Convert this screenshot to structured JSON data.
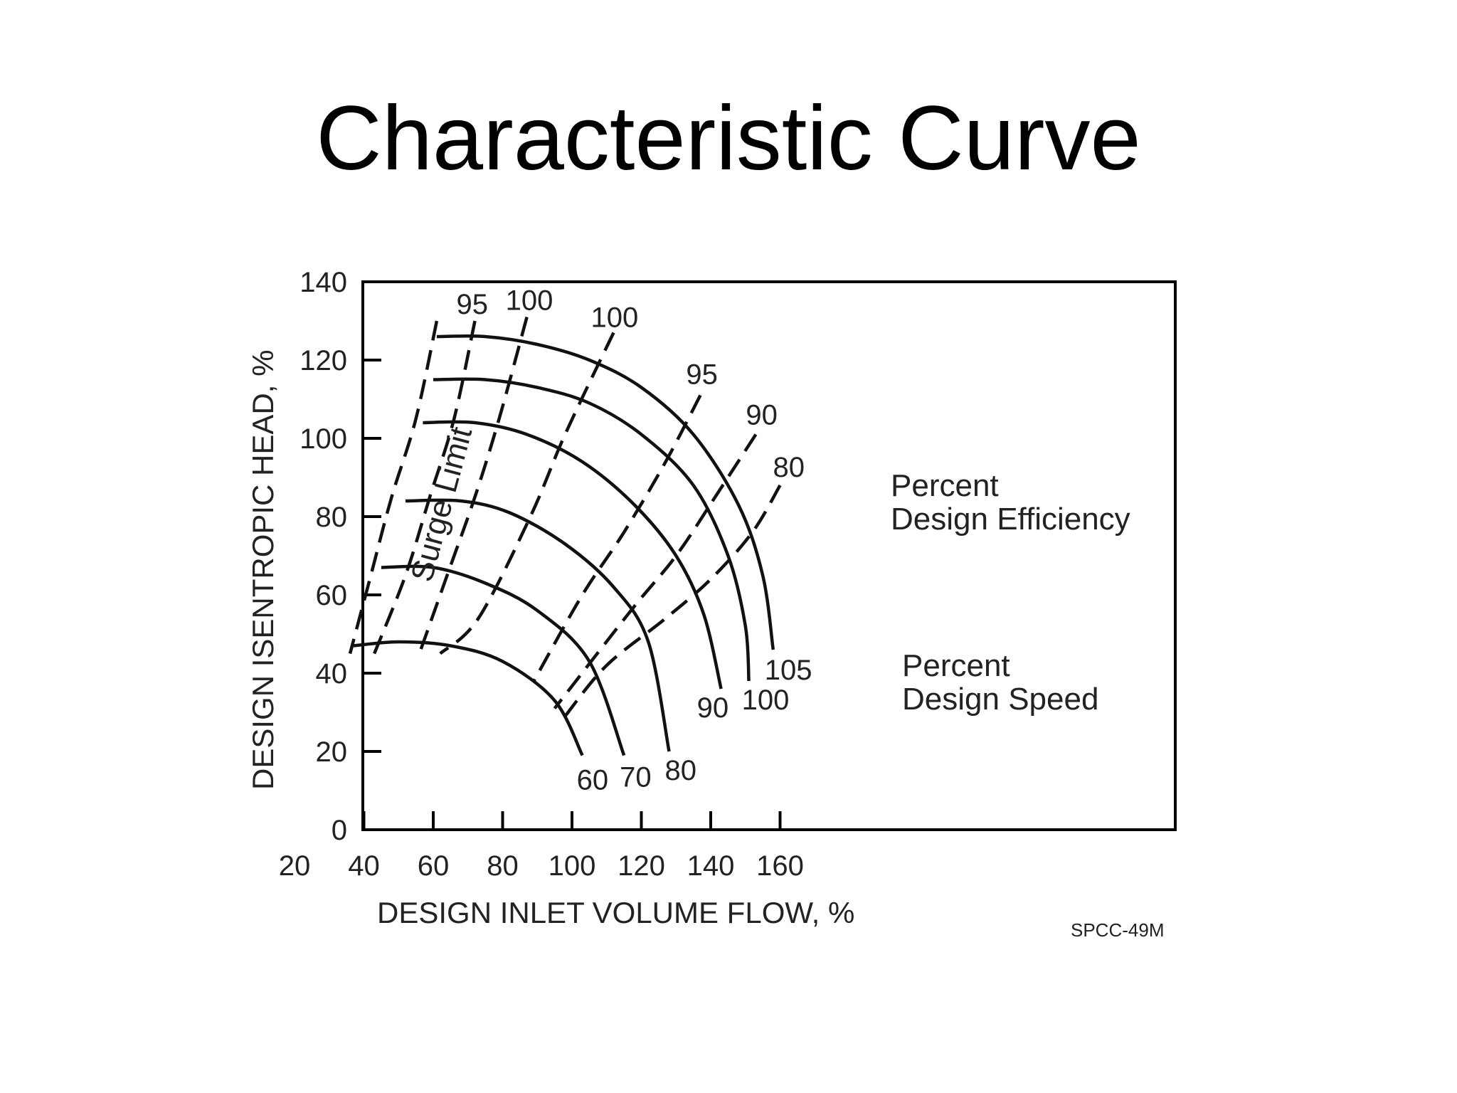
{
  "title": "Characteristic Curve",
  "chart_data": {
    "type": "line",
    "xlabel": "DESIGN INLET VOLUME FLOW, %",
    "ylabel": "DESIGN ISENTROPIC HEAD, %",
    "xlim": [
      20,
      160
    ],
    "ylim": [
      0,
      140
    ],
    "xticks": [
      20,
      40,
      60,
      80,
      100,
      120,
      140,
      160
    ],
    "yticks": [
      0,
      20,
      40,
      60,
      80,
      100,
      120,
      140
    ],
    "grid": false,
    "speed_lines": [
      {
        "label": "60",
        "points": [
          [
            37,
            47
          ],
          [
            50,
            48
          ],
          [
            65,
            47
          ],
          [
            80,
            43
          ],
          [
            95,
            33
          ],
          [
            103,
            19
          ]
        ]
      },
      {
        "label": "70",
        "points": [
          [
            45,
            67
          ],
          [
            60,
            67
          ],
          [
            75,
            63
          ],
          [
            90,
            56
          ],
          [
            105,
            43
          ],
          [
            115,
            19
          ]
        ]
      },
      {
        "label": "80",
        "points": [
          [
            52,
            84
          ],
          [
            68,
            84
          ],
          [
            82,
            81
          ],
          [
            98,
            73
          ],
          [
            112,
            62
          ],
          [
            122,
            48
          ],
          [
            128,
            20
          ]
        ]
      },
      {
        "label": "90",
        "points": [
          [
            57,
            104
          ],
          [
            72,
            104
          ],
          [
            87,
            101
          ],
          [
            103,
            94
          ],
          [
            118,
            83
          ],
          [
            130,
            70
          ],
          [
            138,
            55
          ],
          [
            143,
            36
          ]
        ]
      },
      {
        "label": "100",
        "points": [
          [
            60,
            115
          ],
          [
            75,
            115
          ],
          [
            90,
            113
          ],
          [
            105,
            109
          ],
          [
            120,
            101
          ],
          [
            135,
            88
          ],
          [
            145,
            70
          ],
          [
            150,
            52
          ],
          [
            151,
            38
          ]
        ]
      },
      {
        "label": "105",
        "points": [
          [
            61,
            126
          ],
          [
            75,
            126
          ],
          [
            90,
            124
          ],
          [
            105,
            120
          ],
          [
            120,
            113
          ],
          [
            135,
            101
          ],
          [
            148,
            83
          ],
          [
            155,
            65
          ],
          [
            158,
            46
          ]
        ]
      }
    ],
    "efficiency_lines": [
      {
        "label": "",
        "points": [
          [
            61,
            130
          ],
          [
            55,
            105
          ],
          [
            48,
            85
          ],
          [
            42,
            65
          ],
          [
            36,
            45
          ]
        ]
      },
      {
        "label": "95",
        "points": [
          [
            72,
            130
          ],
          [
            66,
            105
          ],
          [
            59,
            85
          ],
          [
            52,
            65
          ],
          [
            43,
            45
          ]
        ]
      },
      {
        "label": "100",
        "points": [
          [
            87,
            131
          ],
          [
            79,
            105
          ],
          [
            72,
            85
          ],
          [
            64,
            65
          ],
          [
            56,
            45
          ]
        ]
      },
      {
        "label": "100",
        "points": [
          [
            112,
            127
          ],
          [
            98,
            101
          ],
          [
            88,
            80
          ],
          [
            73,
            54
          ],
          [
            62,
            45
          ]
        ]
      },
      {
        "label": "95",
        "points": [
          [
            137,
            111
          ],
          [
            127,
            94
          ],
          [
            115,
            76
          ],
          [
            103,
            60
          ],
          [
            89,
            38
          ]
        ]
      },
      {
        "label": "90",
        "points": [
          [
            153,
            101
          ],
          [
            142,
            86
          ],
          [
            130,
            70
          ],
          [
            117,
            56
          ],
          [
            95,
            31
          ]
        ]
      },
      {
        "label": "80",
        "points": [
          [
            160,
            88
          ],
          [
            152,
            76
          ],
          [
            140,
            64
          ],
          [
            127,
            54
          ],
          [
            110,
            42
          ],
          [
            98,
            29
          ]
        ]
      }
    ],
    "annotations": {
      "surge_limit": "Surge Limit",
      "efficiency_title_1": "Percent",
      "efficiency_title_2": "Design Efficiency",
      "speed_title_1": "Percent",
      "speed_title_2": "Design Speed",
      "figure_code": "SPCC-49M"
    },
    "colors": {
      "line": "#111111",
      "frame": "#000000",
      "text": "#222222"
    }
  }
}
